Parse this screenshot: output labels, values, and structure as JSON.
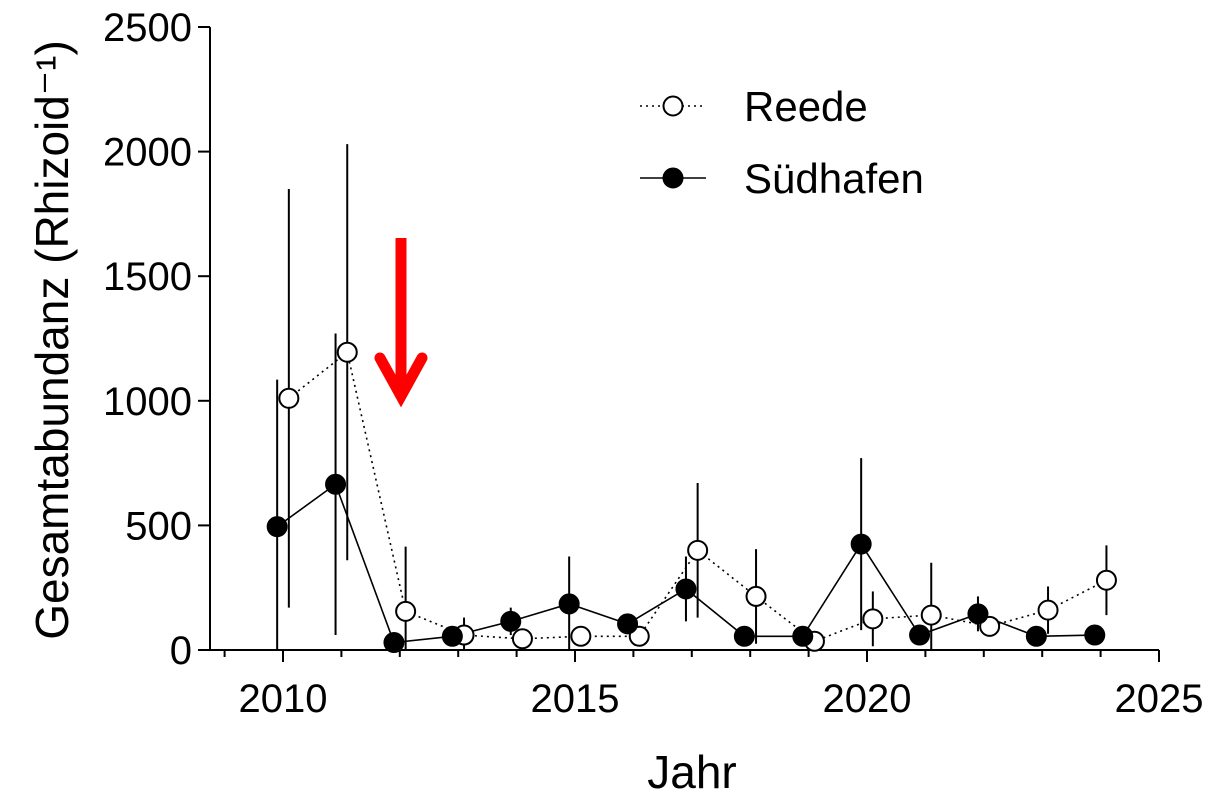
{
  "chart_data": {
    "type": "line",
    "xlabel": "Jahr",
    "ylabel": "Gesamtabundanz (Rhizoid⁻¹)",
    "xlim": [
      2008.75,
      2025
    ],
    "ylim": [
      0,
      2500
    ],
    "xticks": [
      2010,
      2015,
      2020,
      2025
    ],
    "xminorticks": [
      2009,
      2011,
      2012,
      2013,
      2014,
      2016,
      2017,
      2018,
      2019,
      2021,
      2022,
      2023,
      2024
    ],
    "yticks": [
      0,
      500,
      1000,
      1500,
      2000,
      2500
    ],
    "legend": "upper center",
    "series": [
      {
        "name": "Reede",
        "color": "#000000",
        "marker": "open",
        "linestyle": "dotted",
        "x": [
          2010.1,
          2011.1,
          2012.1,
          2013.1,
          2014.1,
          2015.1,
          2016.1,
          2017.1,
          2018.1,
          2019.1,
          2020.1,
          2021.1,
          2022.1,
          2023.1,
          2024.1
        ],
        "values": [
          1010,
          1195,
          155,
          60,
          45,
          55,
          55,
          400,
          215,
          35,
          125,
          140,
          95,
          160,
          280
        ],
        "errors": [
          840,
          835,
          260,
          70,
          0,
          0,
          0,
          270,
          190,
          0,
          110,
          210,
          0,
          95,
          140
        ]
      },
      {
        "name": "Südhafen",
        "color": "#000000",
        "marker": "filled",
        "linestyle": "solid",
        "x": [
          2009.9,
          2010.9,
          2011.9,
          2012.9,
          2013.9,
          2014.9,
          2015.9,
          2016.9,
          2017.9,
          2018.9,
          2019.9,
          2020.9,
          2021.9,
          2022.9,
          2023.9
        ],
        "values": [
          495,
          665,
          30,
          55,
          115,
          185,
          105,
          245,
          55,
          55,
          425,
          60,
          145,
          55,
          60
        ],
        "errors": [
          590,
          605,
          0,
          0,
          55,
          190,
          30,
          130,
          0,
          0,
          345,
          0,
          70,
          0,
          30
        ]
      }
    ]
  }
}
